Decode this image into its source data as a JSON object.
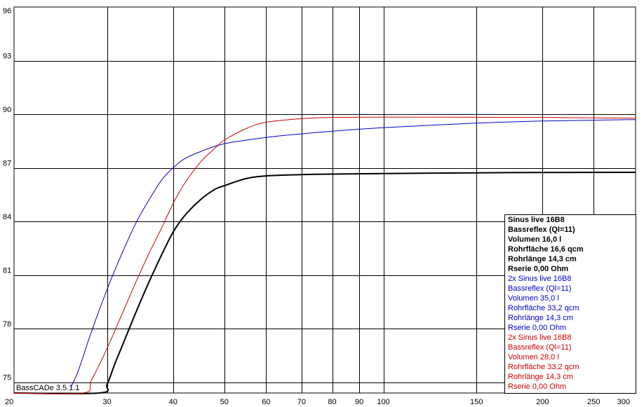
{
  "app_version": "BassCADe 3.5.1.1",
  "chart_data": {
    "type": "line",
    "xscale": "log",
    "xlim": [
      20,
      300
    ],
    "ylim": [
      74.4,
      96
    ],
    "x_ticks": [
      20,
      30,
      40,
      50,
      60,
      70,
      80,
      90,
      100,
      150,
      200,
      250,
      300
    ],
    "y_ticks": [
      75,
      78,
      81,
      84,
      87,
      90,
      93,
      96
    ],
    "grid": true,
    "legend_position": "bottom-right",
    "series": [
      {
        "name": "black",
        "color": "#000000",
        "width": 2,
        "legend": [
          "Sinus live 16B8",
          "Bassreflex (Ql=11)",
          "Volumen 16,0 l",
          "Rohrfläche 16,6 qcm",
          "Rohrlänge 14,3 cm",
          "Rserie 0,00 Ohm"
        ],
        "x": [
          20,
          29,
          30,
          31,
          32,
          34,
          36,
          38,
          40,
          42,
          45,
          48,
          50,
          55,
          60,
          70,
          80,
          100,
          150,
          200,
          300
        ],
        "y": [
          74.4,
          74.4,
          74.9,
          76.0,
          77.0,
          78.9,
          80.6,
          82.1,
          83.4,
          84.3,
          85.2,
          85.8,
          86.0,
          86.4,
          86.55,
          86.62,
          86.65,
          86.68,
          86.72,
          86.74,
          86.75
        ]
      },
      {
        "name": "blue",
        "color": "#0000cc",
        "width": 1,
        "legend": [
          "2x Sinus live 16B8",
          "Bassreflex (Ql=11)",
          "Volumen 35,0 l",
          "Rohrfläche 33,2 qcm",
          "Rohrlänge 14,3 cm",
          "Rserie 0,00 Ohm"
        ],
        "x": [
          25.6,
          26.5,
          28,
          30,
          32,
          34,
          36,
          38,
          40,
          42,
          45,
          50,
          60,
          70,
          80,
          100,
          150,
          200,
          300
        ],
        "y": [
          74.7,
          75.7,
          77.8,
          80.2,
          82.2,
          83.9,
          85.2,
          86.3,
          87.0,
          87.5,
          87.9,
          88.35,
          88.7,
          88.9,
          89.05,
          89.25,
          89.5,
          89.62,
          89.7
        ]
      },
      {
        "name": "red",
        "color": "#cc0000",
        "width": 1,
        "legend": [
          "2x Sinus live 16B8",
          "Bassreflex (Ql=11)",
          "Volumen 28,0 l",
          "Rohrfläche 33,2 qcm",
          "Rohrlänge 14,3 cm",
          "Rserie 0,00 Ohm"
        ],
        "x": [
          20,
          27,
          28,
          30,
          32,
          34,
          36,
          38,
          40,
          42,
          45,
          48,
          50,
          55,
          60,
          70,
          80,
          100,
          150,
          200,
          300
        ],
        "y": [
          74.4,
          74.4,
          75.1,
          76.9,
          78.8,
          80.6,
          82.2,
          83.6,
          85.0,
          86.1,
          87.3,
          88.1,
          88.55,
          89.2,
          89.55,
          89.75,
          89.82,
          89.84,
          89.83,
          89.82,
          89.78
        ]
      }
    ]
  }
}
